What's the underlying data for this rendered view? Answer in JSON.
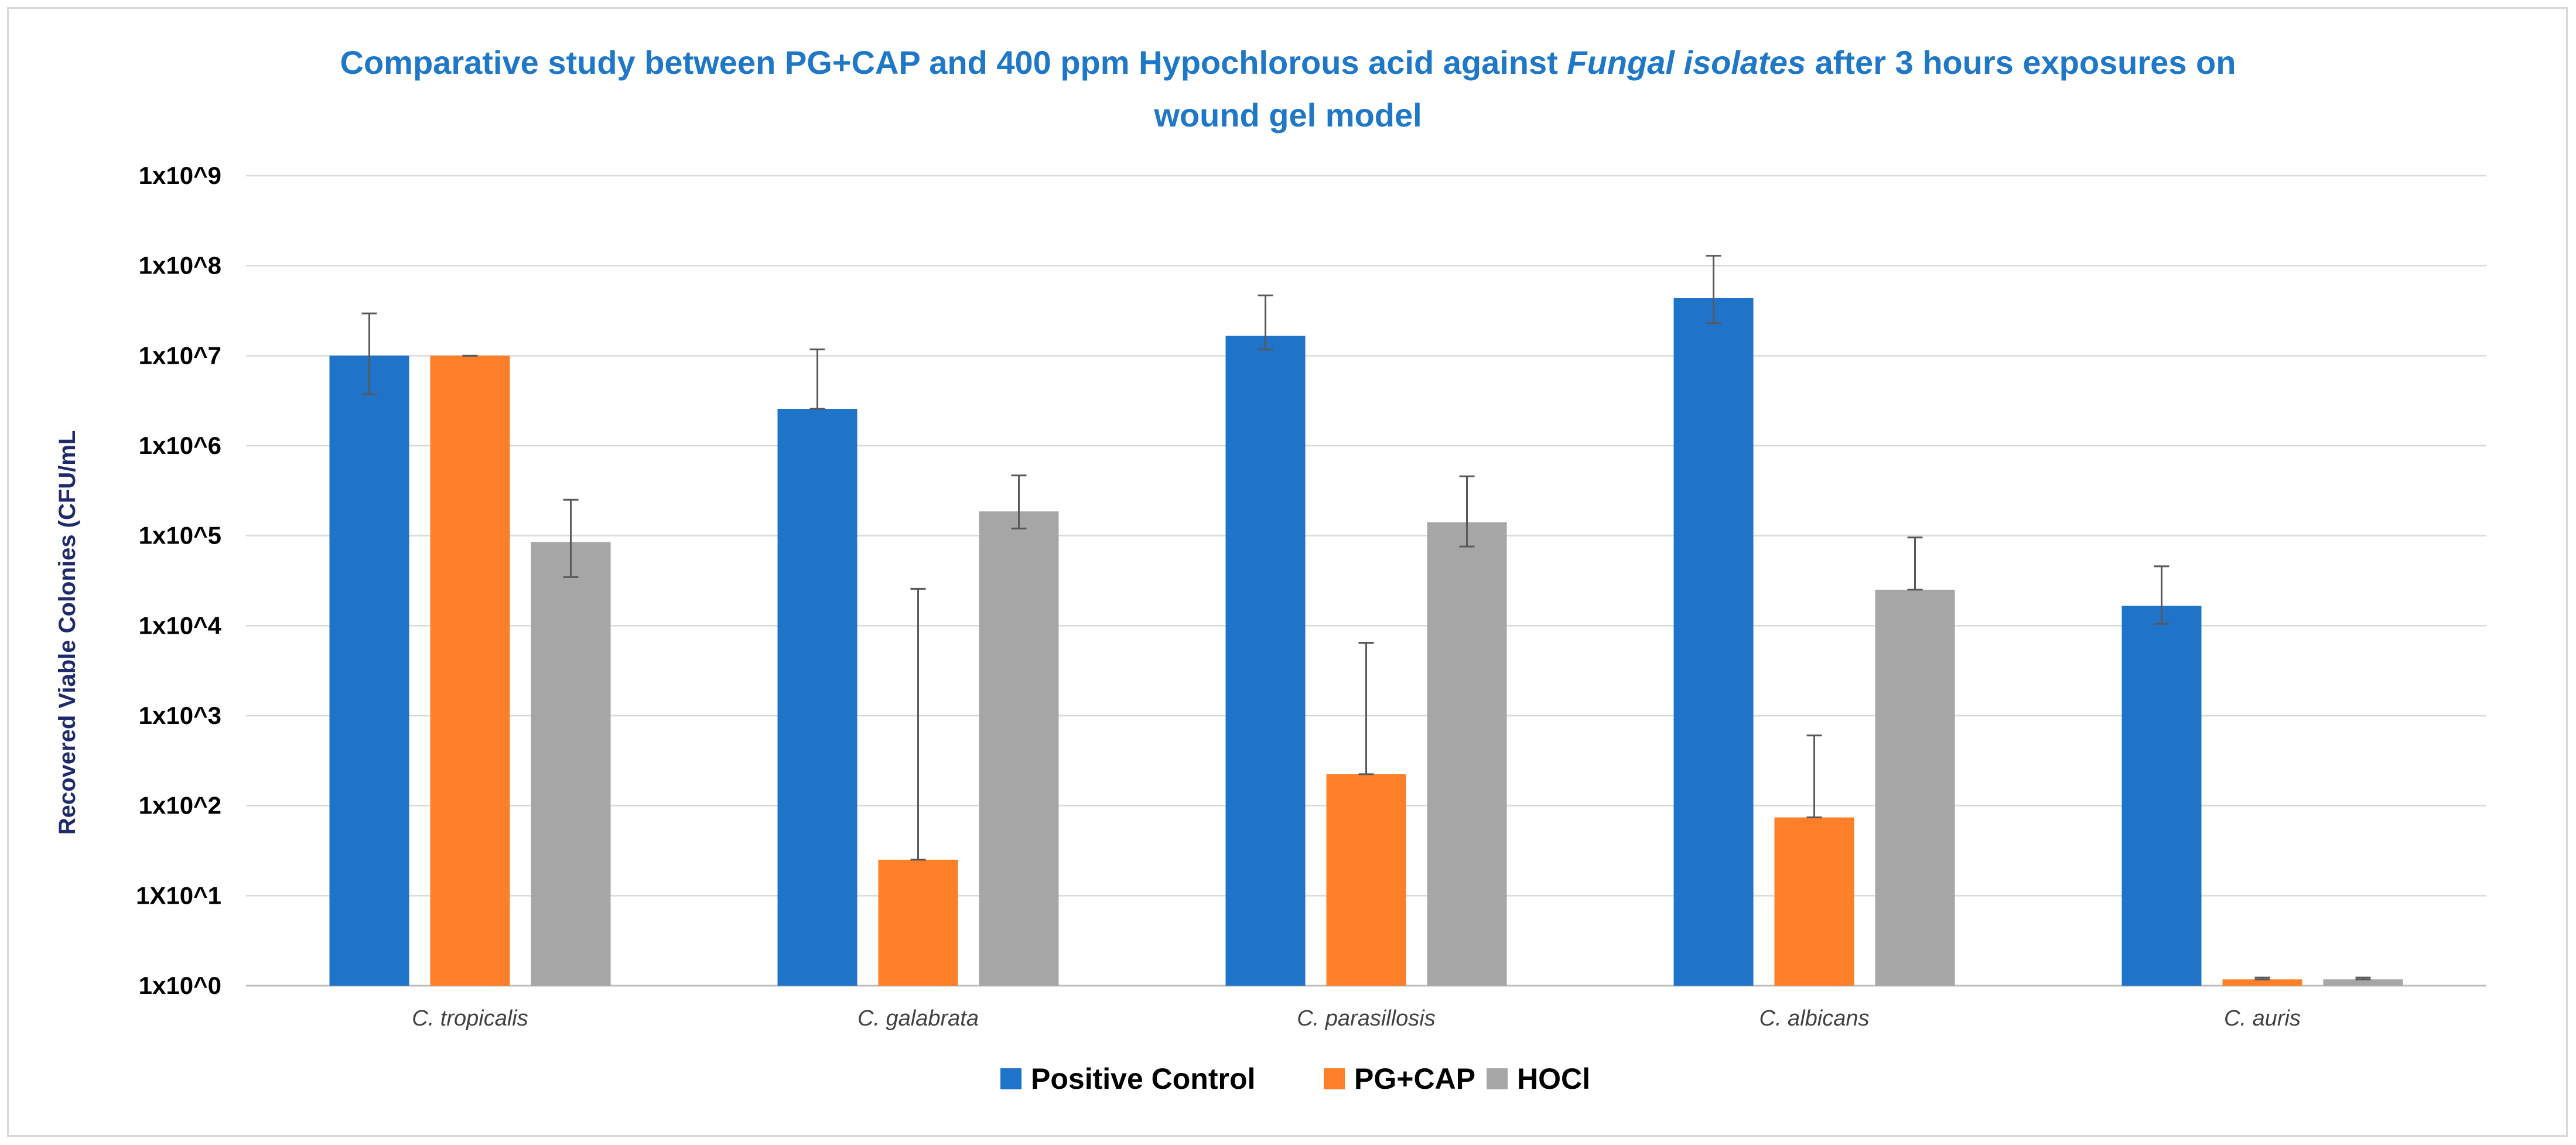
{
  "title": {
    "part1": "Comparative study between PG+CAP and 400 ppm Hypochlorous acid against ",
    "italic": "Fungal isolates",
    "part2": " after 3 hours exposures on",
    "line2": "wound gel model"
  },
  "chart_data": {
    "type": "bar",
    "title": "Comparative study between PG+CAP and 400 ppm Hypochlorous acid against Fungal isolates after 3 hours exposures on wound gel model",
    "ylabel": "Recovered Viable Colonies (CFU/mL",
    "xlabel": "",
    "yscale": "log",
    "ylim_log10": [
      0,
      9
    ],
    "y_tick_labels": [
      "1x10^0",
      "1X10^1",
      "1x10^2",
      "1x10^3",
      "1x10^4",
      "1x10^5",
      "1x10^6",
      "1x10^7",
      "1x10^8",
      "1x10^9"
    ],
    "categories": [
      "C. tropicalis",
      "C. galabrata",
      "C. parasillosis",
      "C. albicans",
      "C. auris"
    ],
    "series": [
      {
        "name": "Positive Control",
        "color": "#1f73c8",
        "log_values": [
          7.0,
          6.41,
          7.22,
          7.64,
          4.22
        ],
        "err_low": [
          6.57,
          6.41,
          7.07,
          7.36,
          4.02
        ],
        "err_high": [
          7.47,
          7.07,
          7.67,
          8.11,
          4.66
        ]
      },
      {
        "name": "PG+CAP",
        "color": "#fd7f28",
        "log_values": [
          7.0,
          1.4,
          2.35,
          1.87,
          0.07
        ],
        "err_low": [
          7.0,
          1.4,
          2.35,
          1.87,
          0.07
        ],
        "err_high": [
          7.0,
          4.41,
          3.81,
          2.78,
          0.09
        ]
      },
      {
        "name": "HOCl",
        "color": "#a6a6a6",
        "log_values": [
          4.93,
          5.27,
          5.15,
          4.4,
          0.07
        ],
        "err_low": [
          4.54,
          5.08,
          4.88,
          4.4,
          0.07
        ],
        "err_high": [
          5.4,
          5.67,
          5.66,
          4.98,
          0.09
        ]
      }
    ],
    "legend_position": "bottom",
    "grid": true
  }
}
